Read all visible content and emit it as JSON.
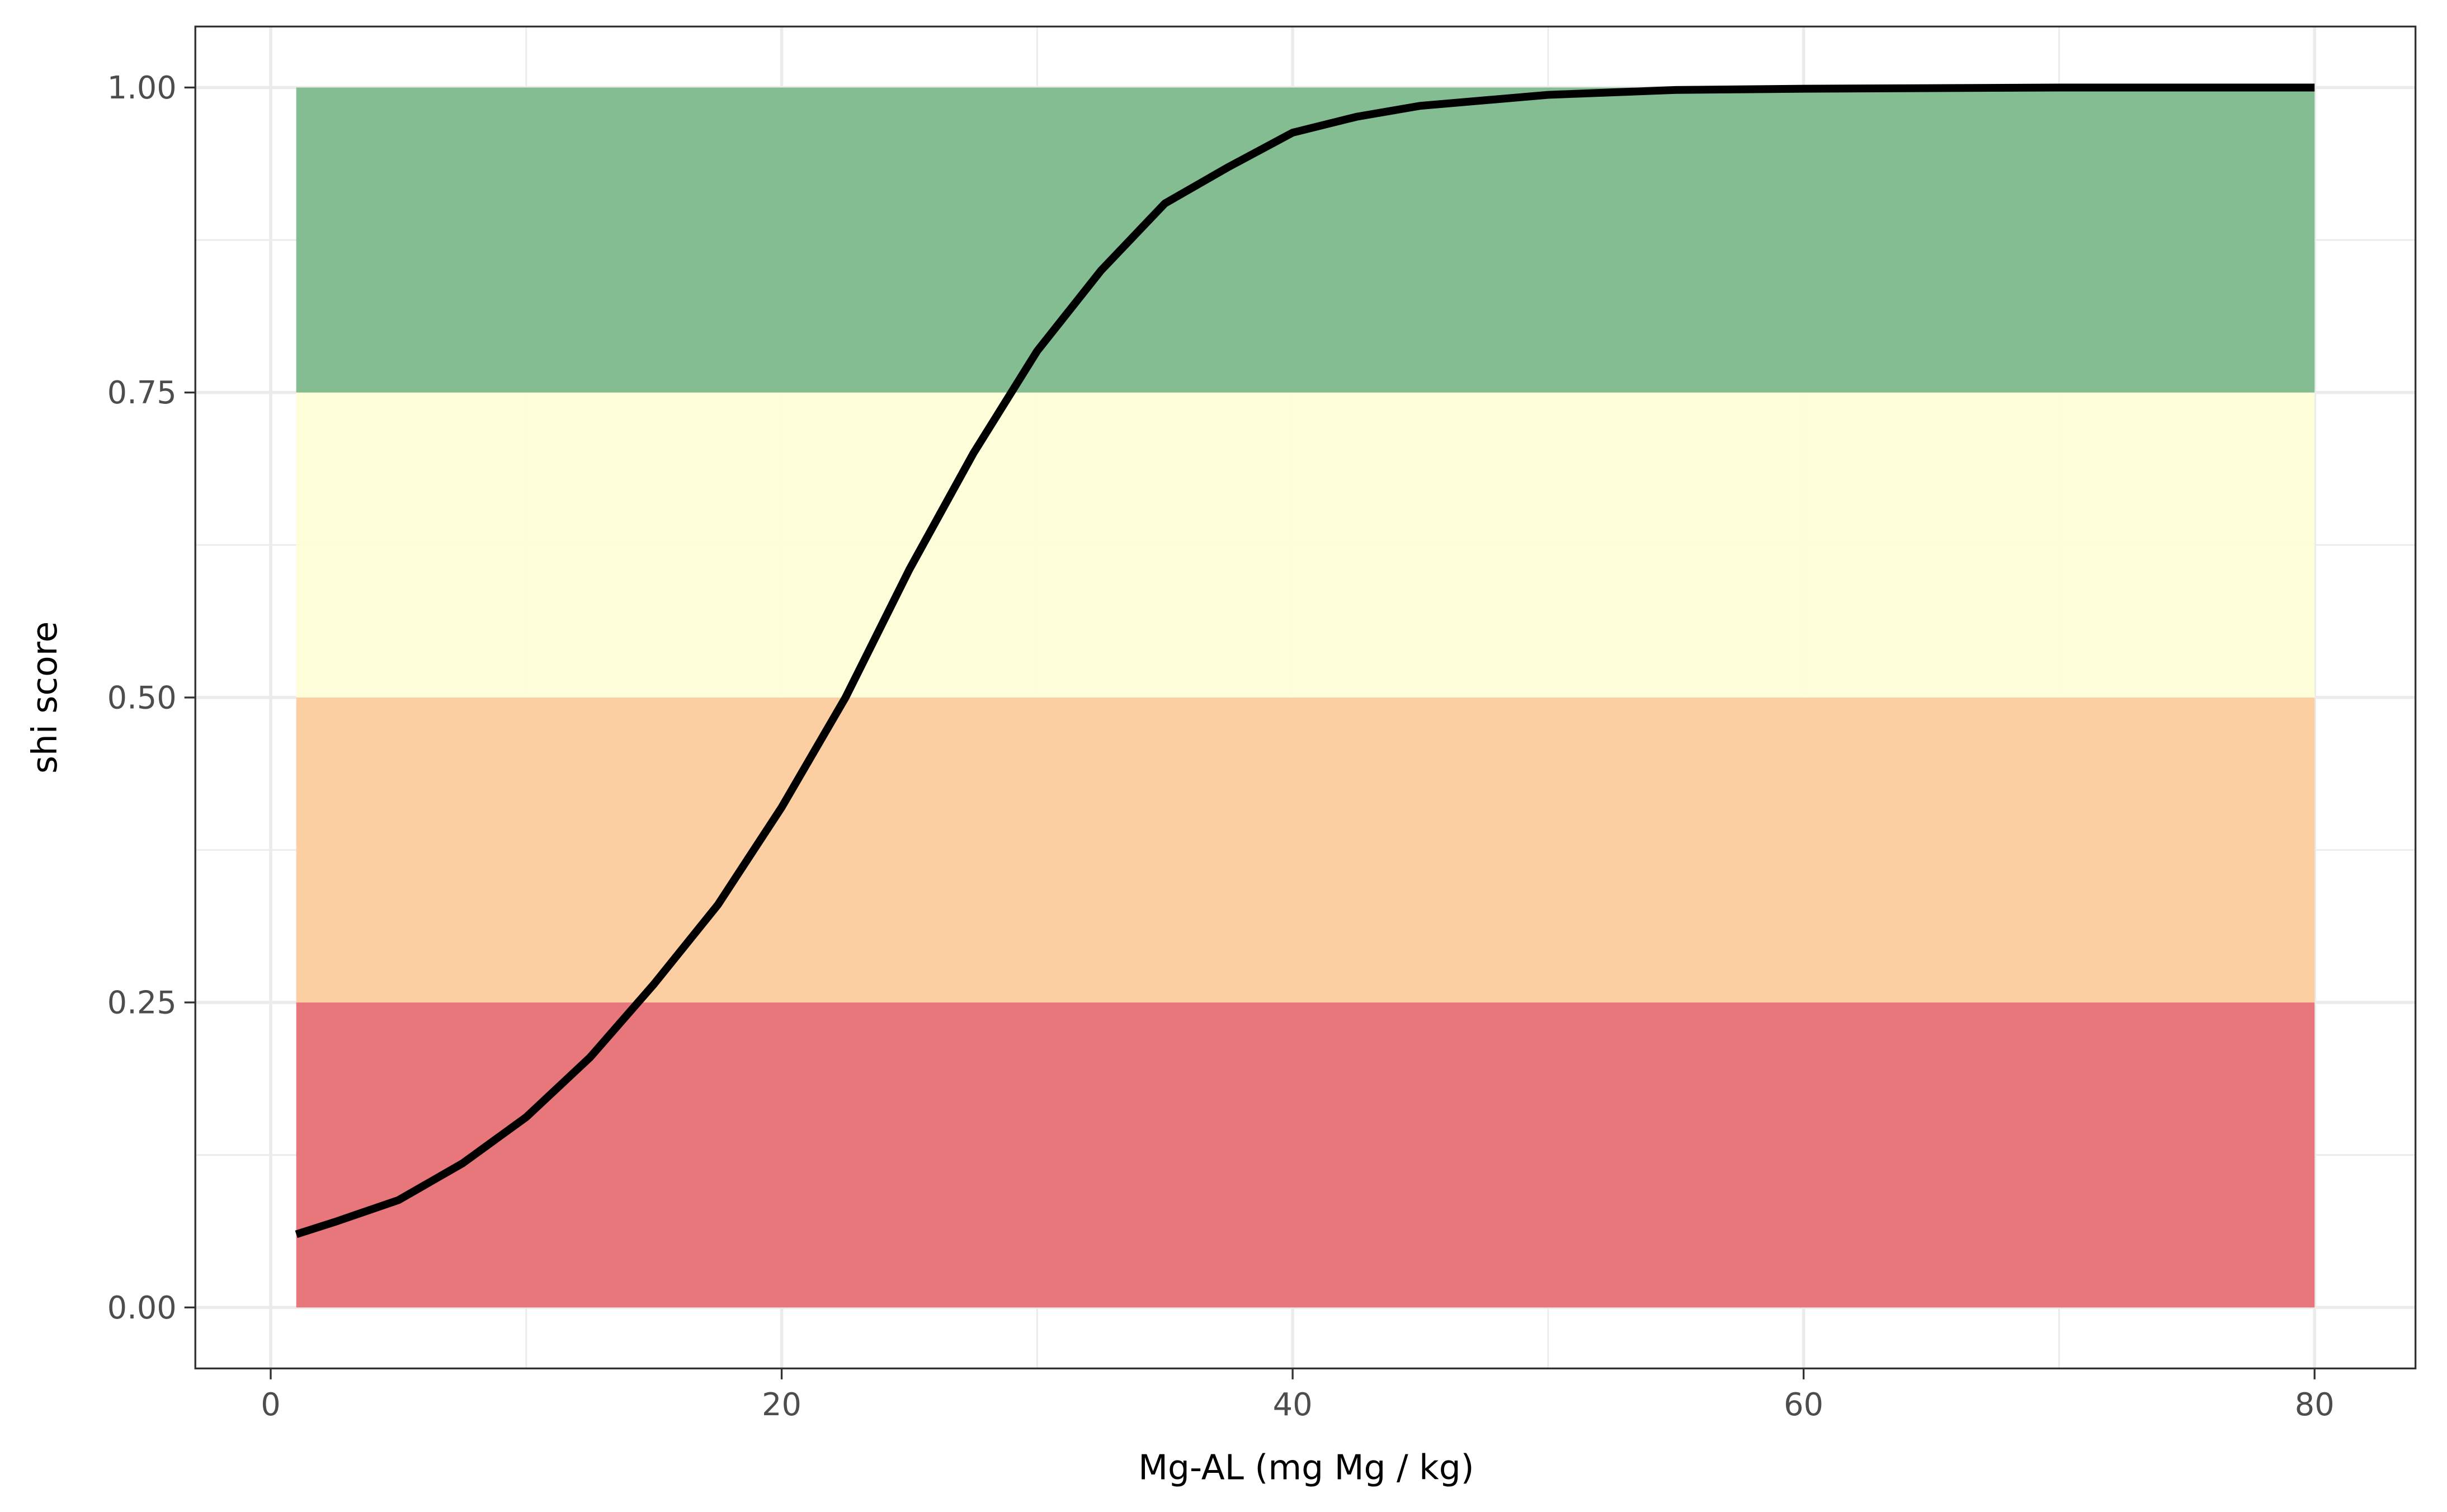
{
  "chart_data": {
    "type": "line",
    "x_label": "Mg-AL (mg Mg / kg)",
    "y_label": "shi score",
    "xlim": [
      -2.95,
      83.95
    ],
    "ylim": [
      -0.05,
      1.05
    ],
    "xticks": [
      0,
      20,
      40,
      60,
      80
    ],
    "yticks": [
      {
        "value": 0,
        "label": "0.00"
      },
      {
        "value": 0.25,
        "label": "0.25"
      },
      {
        "value": 0.5,
        "label": "0.50"
      },
      {
        "value": 0.75,
        "label": "0.75"
      },
      {
        "value": 1,
        "label": "1.00"
      }
    ],
    "x_minor_ticks": [
      10,
      30,
      50,
      70
    ],
    "y_minor_ticks": [
      0.125,
      0.375,
      0.625,
      0.875
    ],
    "grid": true,
    "bands": [
      {
        "xmin": 1,
        "xmax": 80,
        "ymin": 0,
        "ymax": 0.25,
        "color": "#e67073"
      },
      {
        "xmin": 1,
        "xmax": 80,
        "ymin": 0.25,
        "ymax": 0.5,
        "color": "#fccc9e"
      },
      {
        "xmin": 1,
        "xmax": 80,
        "ymin": 0.5,
        "ymax": 0.75,
        "color": "#fefed9"
      },
      {
        "xmin": 1,
        "xmax": 80,
        "ymin": 0.75,
        "ymax": 1,
        "color": "#7db98c"
      }
    ],
    "x": [
      1,
      2.5,
      5,
      7.5,
      10,
      12.5,
      15,
      17.5,
      20,
      22.5,
      25,
      27.5,
      30,
      32.5,
      35,
      37.5,
      40,
      42.5,
      45,
      50,
      55,
      60,
      70,
      80
    ],
    "series": [
      {
        "color": "#000000",
        "values": [
          0.06,
          0.07,
          0.088,
          0.118,
          0.156,
          0.205,
          0.265,
          0.33,
          0.41,
          0.5,
          0.605,
          0.7,
          0.784,
          0.85,
          0.905,
          0.935,
          0.963,
          0.976,
          0.985,
          0.994,
          0.998,
          0.999,
          1.0,
          1.0
        ]
      }
    ]
  }
}
